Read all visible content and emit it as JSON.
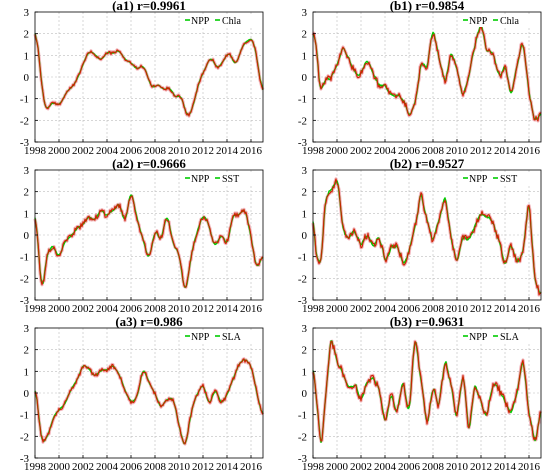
{
  "figure": {
    "panels": [
      {
        "title": "(a1) r=0.9961",
        "legend_prefix": "NPP",
        "legend_label": "Chla",
        "smooth": 4,
        "noise": 0.12,
        "chart_data": {
          "type": "line",
          "xlim": [
            1998,
            2017
          ],
          "ylim": [
            -3,
            3
          ],
          "xticks": [
            "1998",
            "2000",
            "2002",
            "2004",
            "2006",
            "2008",
            "2010",
            "2012",
            "2014",
            "2016"
          ],
          "yticks": [
            "3",
            "2",
            "1",
            "0",
            "-1",
            "-2",
            "-3"
          ],
          "grid": true,
          "legend_position": "top-right",
          "series": [
            {
              "name": "NPP",
              "color": "#00cc00",
              "x": [
                1998.0,
                1998.3,
                1998.7,
                1999.0,
                1999.4,
                1999.8,
                2000.2,
                2000.6,
                2001.0,
                2001.5,
                2002.0,
                2002.5,
                2003.0,
                2003.5,
                2004.0,
                2004.5,
                2005.0,
                2005.5,
                2006.0,
                2006.5,
                2007.0,
                2007.4,
                2007.8,
                2008.2,
                2008.7,
                2009.2,
                2009.7,
                2010.2,
                2010.7,
                2011.2,
                2011.7,
                2012.2,
                2012.7,
                2013.2,
                2013.7,
                2014.2,
                2014.7,
                2015.2,
                2015.7,
                2016.2,
                2016.6,
                2017.0
              ],
              "y": [
                2.6,
                1.2,
                -1.2,
                -1.6,
                -1.1,
                -1.3,
                -1.2,
                -0.7,
                -0.5,
                -0.1,
                0.6,
                1.2,
                1.1,
                0.7,
                1.2,
                1.0,
                1.3,
                0.8,
                0.7,
                0.3,
                0.6,
                0.0,
                -0.6,
                -0.3,
                -0.6,
                -0.4,
                -1.0,
                -0.8,
                -2.0,
                -1.3,
                -0.1,
                0.4,
                1.0,
                0.3,
                0.8,
                1.2,
                0.4,
                1.3,
                1.7,
                1.8,
                0.5,
                -1.1
              ]
            },
            {
              "name": "Chla",
              "color": "#cc2200",
              "x": [],
              "y": []
            }
          ]
        }
      },
      {
        "title": "(b1) r=0.9854",
        "legend_prefix": "NPP",
        "legend_label": "Chla",
        "smooth": 2,
        "noise": 0.25,
        "chart_data": {
          "type": "line",
          "xlim": [
            1998,
            2017
          ],
          "ylim": [
            -3,
            3
          ],
          "xticks": [
            "1998",
            "2000",
            "2002",
            "2004",
            "2006",
            "2008",
            "2010",
            "2012",
            "2014",
            "2016"
          ],
          "yticks": [
            "3",
            "2",
            "1",
            "0",
            "-1",
            "-2",
            "-3"
          ],
          "grid": true,
          "legend_position": "top-right",
          "series": [
            {
              "name": "NPP",
              "color": "#00cc00",
              "x": [
                1998.0,
                1998.3,
                1998.6,
                1999.0,
                1999.5,
                2000.0,
                2000.5,
                2001.0,
                2001.5,
                2002.0,
                2002.5,
                2003.0,
                2003.5,
                2004.0,
                2004.5,
                2005.0,
                2005.5,
                2006.0,
                2006.5,
                2007.0,
                2007.5,
                2008.0,
                2008.5,
                2009.0,
                2009.5,
                2010.0,
                2010.5,
                2011.0,
                2011.5,
                2012.0,
                2012.5,
                2013.0,
                2013.5,
                2014.0,
                2014.5,
                2015.0,
                2015.5,
                2016.0,
                2016.5,
                2017.0
              ],
              "y": [
                2.1,
                1.4,
                -0.7,
                -0.2,
                0.0,
                0.5,
                1.4,
                0.8,
                0.2,
                0.2,
                0.8,
                0.2,
                -0.4,
                -0.3,
                -0.8,
                -0.9,
                -1.0,
                -1.8,
                -1.2,
                0.6,
                0.5,
                2.3,
                0.9,
                -0.3,
                1.1,
                0.4,
                -0.9,
                0.1,
                1.5,
                2.5,
                1.1,
                1.2,
                0.0,
                0.5,
                -0.9,
                0.6,
                1.6,
                -0.7,
                -2.1,
                -1.7
              ]
            },
            {
              "name": "Chla",
              "color": "#cc2200",
              "x": [],
              "y": []
            }
          ]
        }
      },
      {
        "title": "(a2) r=0.9666",
        "legend_prefix": "NPP",
        "legend_label": "SST",
        "smooth": 3,
        "noise": 0.22,
        "chart_data": {
          "type": "line",
          "xlim": [
            1998,
            2017
          ],
          "ylim": [
            -3,
            3
          ],
          "xticks": [
            "1998",
            "2000",
            "2002",
            "2004",
            "2006",
            "2008",
            "2010",
            "2012",
            "2014",
            "2016"
          ],
          "yticks": [
            "3",
            "2",
            "1",
            "0",
            "-1",
            "-2",
            "-3"
          ],
          "grid": true,
          "legend_position": "top-right",
          "series": [
            {
              "name": "NPP",
              "color": "#00cc00",
              "x": [
                1998.0,
                1998.3,
                1998.6,
                1999.0,
                1999.5,
                2000.0,
                2000.5,
                2001.0,
                2001.5,
                2002.0,
                2002.5,
                2003.0,
                2003.5,
                2004.0,
                2004.5,
                2005.0,
                2005.5,
                2006.0,
                2006.5,
                2007.0,
                2007.5,
                2008.0,
                2008.5,
                2009.0,
                2009.5,
                2010.0,
                2010.5,
                2011.0,
                2011.5,
                2012.0,
                2012.5,
                2013.0,
                2013.5,
                2014.0,
                2014.5,
                2015.0,
                2015.5,
                2016.0,
                2016.5,
                2017.0
              ],
              "y": [
                1.4,
                -0.8,
                -2.8,
                -0.8,
                -0.5,
                -1.0,
                -0.3,
                0.0,
                0.3,
                0.5,
                0.9,
                0.7,
                1.2,
                0.9,
                1.1,
                1.5,
                0.5,
                2.1,
                0.8,
                -0.2,
                -1.2,
                0.3,
                -0.3,
                1.1,
                -0.4,
                -0.8,
                -2.8,
                -1.0,
                0.1,
                1.0,
                0.4,
                -0.6,
                0.1,
                -0.5,
                1.0,
                0.9,
                1.3,
                -0.1,
                -1.6,
                -1.0
              ]
            },
            {
              "name": "SST",
              "color": "#cc2200",
              "x": [],
              "y": []
            }
          ]
        }
      },
      {
        "title": "(b2) r=0.9527",
        "legend_prefix": "NPP",
        "legend_label": "SST",
        "smooth": 2,
        "noise": 0.28,
        "chart_data": {
          "type": "line",
          "xlim": [
            1998,
            2017
          ],
          "ylim": [
            -3,
            3
          ],
          "xticks": [
            "1998",
            "2000",
            "2002",
            "2004",
            "2006",
            "2008",
            "2010",
            "2012",
            "2014",
            "2016"
          ],
          "yticks": [
            "3",
            "2",
            "1",
            "0",
            "-1",
            "-2",
            "-3"
          ],
          "grid": true,
          "legend_position": "top-right",
          "series": [
            {
              "name": "NPP",
              "color": "#00cc00",
              "x": [
                1998.0,
                1998.3,
                1998.7,
                1999.0,
                1999.5,
                2000.0,
                2000.5,
                2001.0,
                2001.5,
                2002.0,
                2002.5,
                2003.0,
                2003.5,
                2004.0,
                2004.5,
                2005.0,
                2005.5,
                2006.0,
                2006.5,
                2007.0,
                2007.5,
                2008.0,
                2008.5,
                2009.0,
                2009.5,
                2010.0,
                2010.5,
                2011.0,
                2011.5,
                2012.0,
                2012.5,
                2013.0,
                2013.5,
                2014.0,
                2014.5,
                2015.0,
                2015.5,
                2016.0,
                2016.5,
                2017.0
              ],
              "y": [
                1.0,
                -1.2,
                -1.3,
                1.6,
                2.1,
                2.6,
                0.3,
                -0.2,
                0.2,
                -0.4,
                0.0,
                -0.5,
                0.0,
                -1.2,
                -0.6,
                -0.5,
                -1.4,
                -0.8,
                0.3,
                2.0,
                0.7,
                -0.3,
                0.7,
                1.8,
                -0.1,
                -1.3,
                0.0,
                -0.3,
                0.5,
                1.0,
                0.9,
                0.6,
                -0.2,
                -1.5,
                -0.4,
                -1.2,
                -0.8,
                1.7,
                -2.2,
                -2.7
              ]
            },
            {
              "name": "SST",
              "color": "#cc2200",
              "x": [],
              "y": []
            }
          ]
        }
      },
      {
        "title": "(a3) r=0.986",
        "legend_prefix": "NPP",
        "legend_label": "SLA",
        "smooth": 3,
        "noise": 0.18,
        "chart_data": {
          "type": "line",
          "xlim": [
            1998,
            2017
          ],
          "ylim": [
            -3,
            3
          ],
          "xticks": [
            "1998",
            "2000",
            "2002",
            "2004",
            "2006",
            "2008",
            "2010",
            "2012",
            "2014",
            "2016"
          ],
          "yticks": [
            "3",
            "2",
            "1",
            "0",
            "-1",
            "-2",
            "-3"
          ],
          "grid": true,
          "legend_position": "top-right",
          "series": [
            {
              "name": "NPP",
              "color": "#00cc00",
              "x": [
                1998.0,
                1998.3,
                1998.6,
                1999.0,
                1999.5,
                2000.0,
                2000.5,
                2001.0,
                2001.5,
                2002.0,
                2002.5,
                2003.0,
                2003.5,
                2004.0,
                2004.5,
                2005.0,
                2005.5,
                2006.0,
                2006.5,
                2007.0,
                2007.5,
                2008.0,
                2008.5,
                2009.0,
                2009.5,
                2010.0,
                2010.5,
                2011.0,
                2011.5,
                2012.0,
                2012.5,
                2013.0,
                2013.5,
                2014.0,
                2014.5,
                2015.0,
                2015.5,
                2016.0,
                2016.5,
                2017.0
              ],
              "y": [
                0.6,
                -1.0,
                -2.4,
                -2.0,
                -1.2,
                -0.8,
                -0.5,
                0.2,
                0.6,
                1.4,
                1.1,
                0.8,
                1.1,
                1.0,
                1.3,
                0.9,
                0.1,
                -0.5,
                -0.2,
                1.2,
                0.5,
                0.0,
                -0.7,
                -0.3,
                -0.2,
                -1.5,
                -2.6,
                -0.9,
                0.0,
                0.4,
                -0.6,
                0.2,
                -0.5,
                -0.1,
                0.6,
                1.3,
                1.6,
                1.3,
                0.0,
                -1.2
              ]
            },
            {
              "name": "SLA",
              "color": "#cc2200",
              "x": [],
              "y": []
            }
          ]
        }
      },
      {
        "title": "(b3) r=0.9631",
        "legend_prefix": "NPP",
        "legend_label": "SLA",
        "smooth": 2,
        "noise": 0.28,
        "chart_data": {
          "type": "line",
          "xlim": [
            1998,
            2017
          ],
          "ylim": [
            -3,
            3
          ],
          "xticks": [
            "1998",
            "2000",
            "2002",
            "2004",
            "2006",
            "2008",
            "2010",
            "2012",
            "2014",
            "2016"
          ],
          "yticks": [
            "3",
            "2",
            "1",
            "0",
            "-1",
            "-2",
            "-3"
          ],
          "grid": true,
          "legend_position": "top-right",
          "series": [
            {
              "name": "NPP",
              "color": "#00cc00",
              "x": [
                1998.0,
                1998.3,
                1998.7,
                1999.0,
                1999.5,
                2000.0,
                2000.5,
                2001.0,
                2001.5,
                2002.0,
                2002.5,
                2003.0,
                2003.5,
                2004.0,
                2004.5,
                2005.0,
                2005.5,
                2006.0,
                2006.5,
                2007.0,
                2007.5,
                2008.0,
                2008.5,
                2009.0,
                2009.5,
                2010.0,
                2010.5,
                2011.0,
                2011.5,
                2012.0,
                2012.5,
                2013.0,
                2013.5,
                2014.0,
                2014.5,
                2015.0,
                2015.5,
                2016.0,
                2016.5,
                2017.0
              ],
              "y": [
                1.2,
                -0.2,
                -2.6,
                -0.5,
                2.6,
                1.5,
                0.9,
                0.2,
                0.4,
                -0.3,
                0.5,
                0.7,
                0.3,
                -1.5,
                0.0,
                -0.9,
                0.5,
                -1.0,
                2.7,
                0.6,
                -1.5,
                0.3,
                -0.6,
                1.5,
                0.4,
                -1.2,
                1.0,
                -1.8,
                0.4,
                -0.4,
                -1.1,
                0.5,
                0.2,
                -0.3,
                -1.0,
                0.0,
                1.7,
                -1.0,
                -2.3,
                -0.8
              ]
            },
            {
              "name": "SLA",
              "color": "#cc2200",
              "x": [],
              "y": []
            }
          ]
        }
      }
    ]
  }
}
